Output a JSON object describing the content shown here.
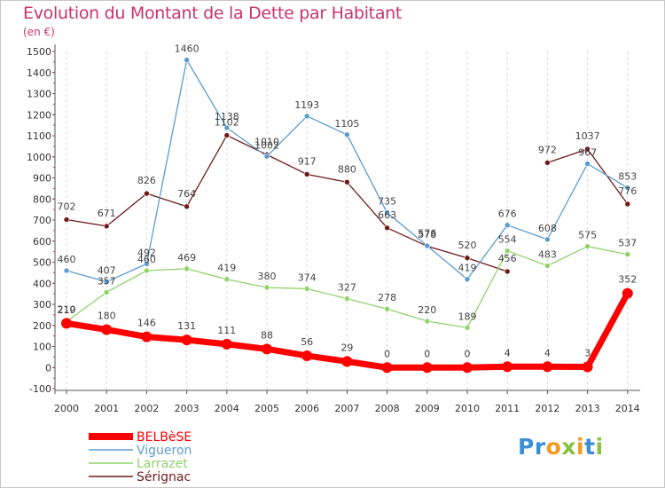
{
  "title": "Evolution du Montant de la Dette par Habitant",
  "unit_label": "(en €)",
  "logo": {
    "letters": [
      {
        "ch": "P",
        "color": "#3a8fd6"
      },
      {
        "ch": "r",
        "color": "#3a8fd6"
      },
      {
        "ch": "o",
        "color": "#f29b20"
      },
      {
        "ch": "x",
        "color": "#86c13f"
      },
      {
        "ch": "i",
        "color": "#f29b20"
      },
      {
        "ch": "t",
        "color": "#3a8fd6"
      },
      {
        "ch": "i",
        "color": "#86c13f"
      }
    ]
  },
  "chart_data": {
    "type": "line",
    "x": [
      "2000",
      "2001",
      "2002",
      "2003",
      "2004",
      "2005",
      "2006",
      "2007",
      "2008",
      "2009",
      "2010",
      "2011",
      "2012",
      "2013",
      "2014"
    ],
    "ylim": [
      -100,
      1500
    ],
    "yticks": [
      -100,
      0,
      100,
      200,
      300,
      400,
      500,
      600,
      700,
      800,
      900,
      1000,
      1100,
      1200,
      1300,
      1400,
      1500
    ],
    "grid": "vertical-dashed",
    "legend": "bottom-left",
    "series": [
      {
        "name": "Sérignac",
        "color": "#6e1a1a",
        "values": [
          702,
          671,
          826,
          764,
          1102,
          1010,
          917,
          880,
          663,
          576,
          520,
          456,
          null,
          null,
          null
        ],
        "values2": [
          null,
          null,
          null,
          null,
          null,
          null,
          null,
          null,
          null,
          null,
          null,
          null,
          972,
          1037,
          776
        ],
        "labels": [
          "702",
          "671",
          "826",
          "764",
          "1102",
          "1010",
          "917",
          "880",
          "663",
          "576",
          "520",
          "456",
          "972",
          "1037",
          "776"
        ]
      },
      {
        "name": "Vigueron",
        "color": "#5b9bd0",
        "values": [
          460,
          407,
          492,
          1460,
          1138,
          1002,
          1193,
          1105,
          735,
          578,
          419,
          676,
          608,
          967,
          853
        ],
        "labels": [
          "460",
          "407",
          "492",
          "1460",
          "1138",
          "1002",
          "1193",
          "1105",
          "735",
          "578",
          "419",
          "676",
          "608",
          "967",
          "853"
        ]
      },
      {
        "name": "Larrazet",
        "color": "#8fd26a",
        "values": [
          219,
          357,
          460,
          469,
          419,
          380,
          374,
          327,
          278,
          220,
          189,
          554,
          483,
          575,
          537
        ],
        "labels": [
          "219",
          "357",
          "460",
          "469",
          "419",
          "380",
          "374",
          "327",
          "278",
          "220",
          "189",
          "554",
          "483",
          "575",
          "537"
        ]
      },
      {
        "name": "BELBèSE",
        "color": "#ff0000",
        "values": [
          210,
          180,
          146,
          131,
          111,
          88,
          56,
          29,
          0,
          0,
          0,
          4,
          4,
          3,
          352
        ],
        "labels": [
          "210",
          "180",
          "146",
          "131",
          "111",
          "88",
          "56",
          "29",
          "0",
          "0",
          "0",
          "4",
          "4",
          "3",
          "352"
        ]
      }
    ]
  }
}
